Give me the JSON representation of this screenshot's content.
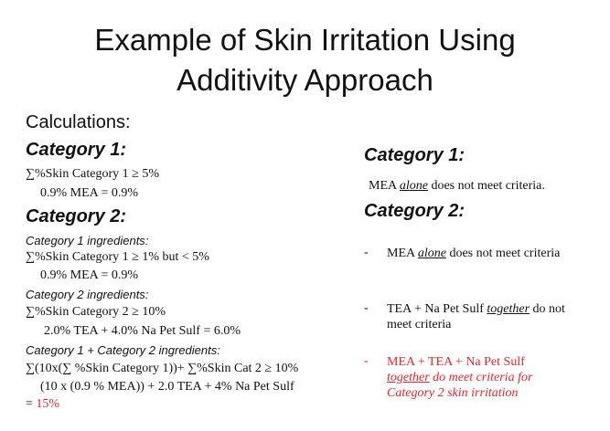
{
  "title": {
    "line1": "Example of Skin Irritation Using",
    "line2": "Additivity Approach"
  },
  "left": {
    "calculations_label": "Calculations:",
    "cat1_heading": "Category 1:",
    "cat1_formula": "∑%Skin Category 1 ≥ 5%",
    "cat1_value": "0.9% MEA = 0.9%",
    "cat2_heading": "Category 2:",
    "cat2_sub1": "Category 1 ingredients:",
    "cat2_formula1": "∑%Skin Category 1 ≥ 1% but < 5%",
    "cat2_value1": "0.9% MEA = 0.9%",
    "cat2_sub2": "Category 2 ingredients:",
    "cat2_formula2": "∑%Skin Category 2 ≥ 10%",
    "cat2_value2": "2.0%  TEA + 4.0% Na Pet Sulf = 6.0%",
    "cat2_sub3": "Category 1 + Category 2 ingredients:",
    "cat2_formula3": "∑(10x(∑ %Skin Category 1))+ ∑%Skin Cat 2 ≥ 10%",
    "cat2_value3": "(10 x (0.9 % MEA)) + 2.0 TEA + 4% Na Pet Sulf",
    "cat2_result_eq": "= ",
    "cat2_result": "15%"
  },
  "right": {
    "cat1_heading": "Category 1:",
    "cat1_pre": "MEA ",
    "cat1_em": "alone",
    "cat1_post": " does not meet criteria.",
    "cat2_heading": "Category 2:",
    "bullets": [
      {
        "dash": "-",
        "pre": "MEA ",
        "em": "alone",
        "post": " does not meet criteria"
      },
      {
        "dash": "-",
        "pre": "TEA + Na Pet Sulf ",
        "em": "together",
        "post": " do not meet criteria"
      },
      {
        "dash": "-",
        "pre": "MEA + TEA + Na Pet Sulf ",
        "em": "together",
        "post": " do meet criteria for Category 2 skin irritation"
      }
    ]
  },
  "colors": {
    "accent_red": "#e5252a",
    "text": "#111111"
  }
}
